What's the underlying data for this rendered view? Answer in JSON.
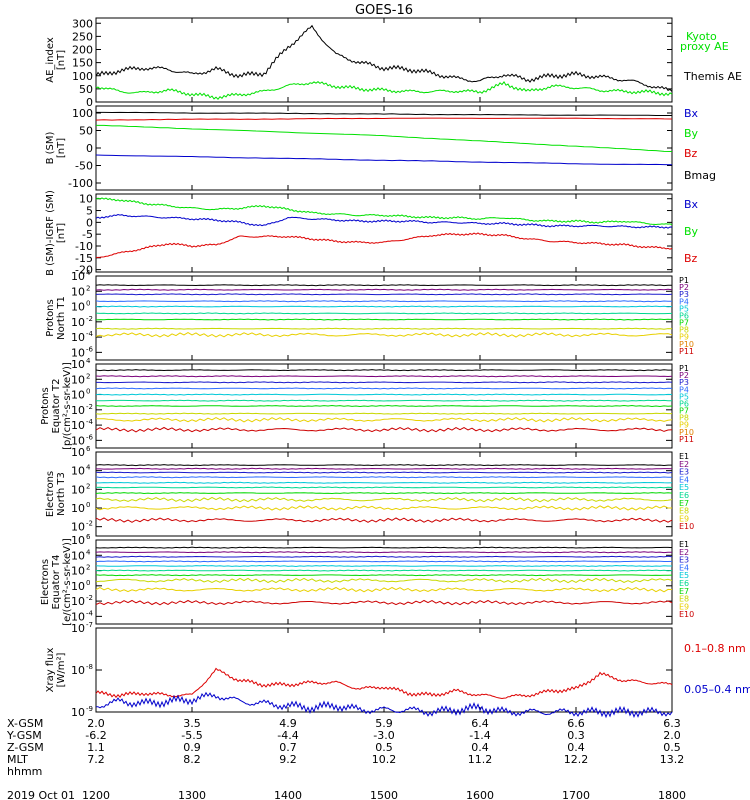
{
  "title": "GOES-16",
  "colors": {
    "black": "#000000",
    "green": "#00e000",
    "blue": "#0000cc",
    "red": "#dd0000",
    "p_series": [
      "#000000",
      "#7a007a",
      "#1a1acc",
      "#2e6cff",
      "#00c8d8",
      "#00d890",
      "#00d800",
      "#c8d800",
      "#e8d000",
      "#e08000",
      "#cc0000"
    ],
    "e_series": [
      "#000000",
      "#7a007a",
      "#1a1acc",
      "#2e6cff",
      "#00c8d8",
      "#00d890",
      "#00d800",
      "#c8d800",
      "#e8d000",
      "#cc0000"
    ]
  },
  "time_axis": {
    "range": [
      1200,
      1800
    ],
    "ticks": [
      1200,
      1300,
      1400,
      1500,
      1600,
      1700,
      1800
    ],
    "row_labels": [
      "X-GSM",
      "Y-GSM",
      "Z-GSM",
      "MLT",
      "hhmm",
      "2019 Oct 01"
    ],
    "x_gsm": [
      "2.0",
      "3.5",
      "4.9",
      "5.9",
      "6.4",
      "6.6",
      "6.3"
    ],
    "y_gsm": [
      "-6.2",
      "-5.5",
      "-4.4",
      "-3.0",
      "-1.4",
      "0.3",
      "2.0"
    ],
    "z_gsm": [
      "1.1",
      "0.9",
      "0.7",
      "0.5",
      "0.4",
      "0.4",
      "0.5"
    ],
    "mlt": [
      "7.2",
      "8.2",
      "9.2",
      "10.2",
      "11.2",
      "12.2",
      "13.2"
    ],
    "hhmm": [
      "1200",
      "1300",
      "1400",
      "1500",
      "1600",
      "1700",
      "1800"
    ]
  },
  "chart_data": [
    {
      "type": "line",
      "ylabel": "AE index [nT]",
      "ylim": [
        0,
        320
      ],
      "yticks": [
        "0",
        "50",
        "100",
        "150",
        "200",
        "250",
        "300"
      ],
      "series": [
        {
          "name": "Kyoto proxy AE",
          "color": "#00e000",
          "x": [
            1200,
            1215,
            1230,
            1245,
            1300,
            1315,
            1330,
            1345,
            1400,
            1415,
            1430,
            1445,
            1500,
            1515,
            1530,
            1545,
            1600,
            1615,
            1630,
            1645,
            1700,
            1715,
            1730,
            1745,
            1800
          ],
          "values": [
            60,
            40,
            35,
            45,
            30,
            18,
            28,
            40,
            62,
            75,
            60,
            50,
            45,
            40,
            40,
            42,
            38,
            70,
            40,
            60,
            55,
            45,
            40,
            38,
            30
          ]
        },
        {
          "name": "Themis AE",
          "color": "#000000",
          "x": [
            1200,
            1215,
            1230,
            1245,
            1300,
            1315,
            1330,
            1345,
            1400,
            1415,
            1430,
            1445,
            1500,
            1515,
            1530,
            1545,
            1600,
            1615,
            1630,
            1645,
            1700,
            1715,
            1730,
            1745,
            1800
          ],
          "values": [
            100,
            120,
            130,
            125,
            105,
            125,
            100,
            110,
            210,
            285,
            180,
            150,
            130,
            125,
            110,
            90,
            80,
            105,
            85,
            100,
            105,
            95,
            85,
            65,
            40
          ]
        }
      ]
    },
    {
      "type": "line",
      "ylabel": "B (SM) [nT]",
      "ylim": [
        -120,
        120
      ],
      "yticks": [
        "-100",
        "-50",
        "0",
        "50",
        "100"
      ],
      "series": [
        {
          "name": "Bx",
          "color": "#0000cc",
          "x": [
            1200,
            1300,
            1400,
            1500,
            1600,
            1700,
            1800
          ],
          "values": [
            -20,
            -25,
            -30,
            -35,
            -40,
            -45,
            -48
          ]
        },
        {
          "name": "By",
          "color": "#00e000",
          "x": [
            1200,
            1300,
            1400,
            1500,
            1600,
            1700,
            1800
          ],
          "values": [
            65,
            55,
            45,
            35,
            20,
            5,
            -10
          ]
        },
        {
          "name": "Bz",
          "color": "#dd0000",
          "x": [
            1200,
            1300,
            1400,
            1500,
            1600,
            1700,
            1800
          ],
          "values": [
            80,
            82,
            83,
            85,
            85,
            85,
            83
          ]
        },
        {
          "name": "Bmag",
          "color": "#000000",
          "x": [
            1200,
            1300,
            1400,
            1500,
            1600,
            1700,
            1800
          ],
          "values": [
            102,
            100,
            99,
            97,
            95,
            94,
            93
          ]
        }
      ]
    },
    {
      "type": "line",
      "ylabel": "B (SM)-IGRF (SM) [nT]",
      "ylim": [
        -21,
        12
      ],
      "yticks": [
        "-20",
        "-15",
        "-10",
        "-5",
        "0",
        "5",
        "10"
      ],
      "series": [
        {
          "name": "Bx",
          "color": "#0000cc",
          "x": [
            1200,
            1215,
            1230,
            1245,
            1300,
            1315,
            1330,
            1345,
            1400,
            1415,
            1430,
            1445,
            1500,
            1515,
            1530,
            1545,
            1600,
            1615,
            1630,
            1645,
            1700,
            1715,
            1730,
            1745,
            1800
          ],
          "values": [
            2,
            3,
            2.5,
            2,
            1.5,
            1,
            0,
            -1.5,
            2,
            1.5,
            1,
            0.5,
            0.5,
            0.5,
            0,
            0,
            -0.5,
            -0.5,
            -1,
            -1.5,
            -1.5,
            -1.5,
            -1.8,
            -2,
            -2
          ]
        },
        {
          "name": "By",
          "color": "#00e000",
          "x": [
            1200,
            1215,
            1230,
            1245,
            1300,
            1315,
            1330,
            1345,
            1400,
            1415,
            1430,
            1445,
            1500,
            1515,
            1530,
            1545,
            1600,
            1615,
            1630,
            1645,
            1700,
            1715,
            1730,
            1745,
            1800
          ],
          "values": [
            10,
            9.5,
            8,
            7,
            6,
            5.5,
            6,
            7,
            5.5,
            4,
            3.5,
            3,
            3,
            2.5,
            2,
            2,
            1.5,
            2,
            1,
            0.5,
            0.5,
            0,
            0.5,
            -0.5,
            -1
          ]
        },
        {
          "name": "Bz",
          "color": "#dd0000",
          "x": [
            1200,
            1215,
            1230,
            1245,
            1300,
            1315,
            1330,
            1345,
            1400,
            1415,
            1430,
            1445,
            1500,
            1515,
            1530,
            1545,
            1600,
            1615,
            1630,
            1645,
            1700,
            1715,
            1730,
            1745,
            1800
          ],
          "values": [
            -15,
            -13,
            -11,
            -9,
            -10,
            -9.5,
            -6,
            -6,
            -6,
            -7,
            -8,
            -8.5,
            -8.5,
            -7,
            -5.5,
            -5,
            -5,
            -5.5,
            -7,
            -8,
            -8.5,
            -9,
            -9.5,
            -10.5,
            -11
          ]
        }
      ]
    },
    {
      "type": "line",
      "ylabel": "Protons North T1",
      "yscale": "log",
      "ylim_exp": [
        -7,
        4
      ],
      "yticks": [
        "10^4",
        "10^2",
        "10^0",
        "10^-2",
        "10^-4",
        "10^-6"
      ],
      "legend": [
        "P1",
        "P2",
        "P3",
        "P4",
        "P5",
        "P6",
        "P7",
        "P8",
        "P9",
        "P10",
        "P11"
      ],
      "levels_exp": [
        2.8,
        2.2,
        1.6,
        0.7,
        0,
        -0.9,
        -1.7,
        -2.9,
        -3.7,
        -99,
        -99
      ]
    },
    {
      "type": "line",
      "ylabel": "Protons Equator T2 [p/(cm²-s-sr-keV)]",
      "yscale": "log",
      "ylim_exp": [
        -7,
        4
      ],
      "yticks": [
        "10^4",
        "10^2",
        "10^0",
        "10^-2",
        "10^-4",
        "10^-6"
      ],
      "legend": [
        "P1",
        "P2",
        "P3",
        "P4",
        "P5",
        "P6",
        "P7",
        "P8",
        "P9",
        "P10",
        "P11"
      ],
      "levels_exp": [
        3.2,
        2.4,
        1.6,
        0.8,
        0,
        -0.8,
        -1.5,
        -2.5,
        -3.3,
        -99,
        -4.6
      ]
    },
    {
      "type": "line",
      "ylabel": "Electrons North T3",
      "yscale": "log",
      "ylim_exp": [
        -3,
        6
      ],
      "yticks": [
        "10^6",
        "10^4",
        "10^2",
        "10^0",
        "10^-2"
      ],
      "legend": [
        "E1",
        "E2",
        "E3",
        "E4",
        "E5",
        "E6",
        "E7",
        "E8",
        "E9",
        "E10"
      ],
      "levels_exp": [
        4.6,
        4.2,
        3.8,
        3.3,
        2.7,
        2.2,
        1.6,
        0.9,
        0,
        -1.3
      ]
    },
    {
      "type": "line",
      "ylabel": "Electrons Equator T4 [e/(cm²-s-sr-keV)]",
      "yscale": "log",
      "ylim_exp": [
        -5,
        6
      ],
      "yticks": [
        "10^6",
        "10^4",
        "10^2",
        "10^0",
        "10^-2",
        "10^-4"
      ],
      "legend": [
        "E1",
        "E2",
        "E3",
        "E4",
        "E5",
        "E6",
        "E7",
        "E8",
        "E9",
        "E10"
      ],
      "levels_exp": [
        5,
        4.4,
        3.8,
        3.2,
        2.6,
        2,
        1.4,
        0.7,
        -0.5,
        -2.2
      ]
    },
    {
      "type": "line",
      "ylabel": "Xray flux [W/m²]",
      "yscale": "log",
      "ylim_exp": [
        -9,
        -7
      ],
      "yticks": [
        "10^-7",
        "10^-8",
        "10^-9"
      ],
      "series": [
        {
          "name": "0.1–0.8 nm",
          "color": "#dd0000",
          "x": [
            1200,
            1215,
            1230,
            1245,
            1300,
            1315,
            1330,
            1345,
            1400,
            1415,
            1430,
            1445,
            1500,
            1515,
            1530,
            1545,
            1600,
            1615,
            1630,
            1645,
            1700,
            1715,
            1730,
            1745,
            1800
          ],
          "values_exp": [
            -8.55,
            -8.6,
            -8.55,
            -8.6,
            -8.6,
            -8.0,
            -8.25,
            -8.35,
            -8.35,
            -8.3,
            -8.3,
            -8.45,
            -8.4,
            -8.55,
            -8.6,
            -8.5,
            -8.6,
            -8.65,
            -8.6,
            -8.5,
            -8.45,
            -8.1,
            -8.25,
            -8.3,
            -8.35
          ]
        },
        {
          "name": "0.05–0.4 nm",
          "color": "#0000cc",
          "x": [
            1200,
            1215,
            1230,
            1245,
            1300,
            1315,
            1330,
            1345,
            1400,
            1415,
            1430,
            1445,
            1500,
            1515,
            1530,
            1545,
            1600,
            1615,
            1630,
            1645,
            1700,
            1715,
            1730,
            1745,
            1800
          ],
          "values_exp": [
            -8.85,
            -8.75,
            -8.8,
            -8.75,
            -8.7,
            -8.6,
            -8.75,
            -8.8,
            -8.85,
            -8.9,
            -8.85,
            -8.95,
            -8.95,
            -8.95,
            -9.0,
            -8.95,
            -8.9,
            -9.0,
            -9.0,
            -9.0,
            -9.0,
            -9.0,
            -9.0,
            -9.0,
            -9.0
          ]
        }
      ]
    }
  ],
  "legend_labels": {
    "ae": [
      "Kyoto",
      "proxy AE",
      "Themis AE"
    ],
    "b": [
      "Bx",
      "By",
      "Bz",
      "Bmag"
    ],
    "db": [
      "Bx",
      "By",
      "Bz"
    ],
    "xray": [
      "0.1–0.8 nm",
      "0.05–0.4 nm"
    ]
  }
}
